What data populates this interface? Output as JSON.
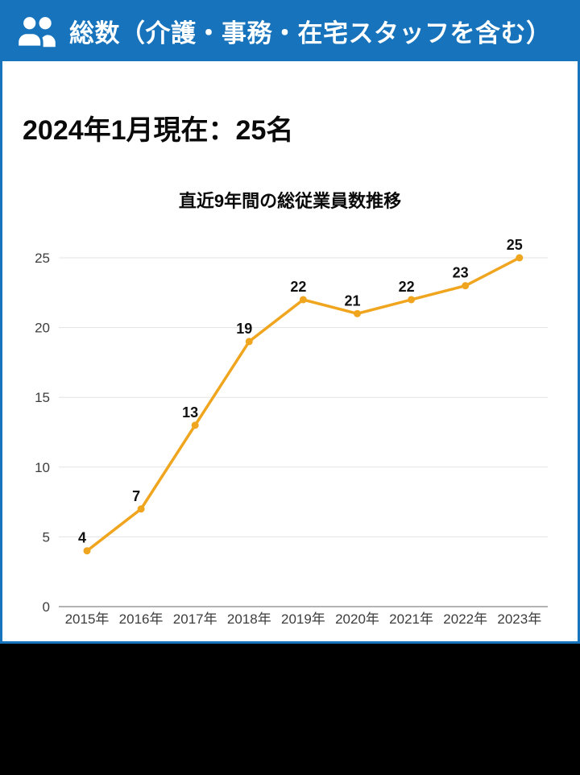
{
  "header": {
    "title": "総数（介護・事務・在宅スタッフを含む）",
    "icon": "users-icon",
    "background_color": "#1673BC",
    "text_color": "#FFFFFF"
  },
  "card": {
    "heading": "2024年1月現在：25名",
    "border_color": "#1673BC",
    "background_color": "#FFFFFF"
  },
  "chart_data": {
    "type": "line",
    "title": "直近9年間の総従業員数推移",
    "categories": [
      "2015年",
      "2016年",
      "2017年",
      "2018年",
      "2019年",
      "2020年",
      "2021年",
      "2022年",
      "2023年"
    ],
    "values": [
      4,
      7,
      13,
      19,
      22,
      21,
      22,
      23,
      25
    ],
    "y_ticks": [
      0,
      5,
      10,
      15,
      20,
      25
    ],
    "ylim": [
      0,
      25
    ],
    "xlabel": "",
    "ylabel": "",
    "legend": "none",
    "grid": true,
    "line_color": "#F0A51F",
    "marker": "circle",
    "data_labels_shown": true,
    "gridline_color": "#E3E3E3",
    "axis_line_color": "#9A9A9A",
    "tick_label_color": "#3D3D3D",
    "data_label_color": "#111111"
  },
  "footer": {
    "background_color": "#000000"
  }
}
